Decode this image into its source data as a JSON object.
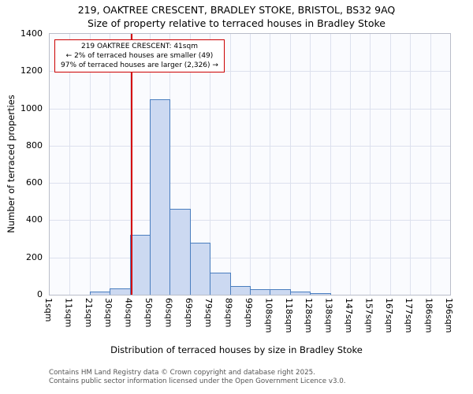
{
  "chart_data": {
    "type": "bar",
    "title": "219, OAKTREE CRESCENT, BRADLEY STOKE, BRISTOL, BS32 9AQ",
    "subtitle": "Size of property relative to terraced houses in Bradley Stoke",
    "xlabel": "Distribution of terraced houses by size in Bradley Stoke",
    "ylabel": "Number of terraced properties",
    "bin_edges_sqm": [
      1,
      11,
      21,
      30,
      40,
      50,
      60,
      69,
      79,
      89,
      99,
      108,
      118,
      128,
      138,
      147,
      157,
      167,
      177,
      186,
      196
    ],
    "tick_labels": [
      "1sqm",
      "11sqm",
      "21sqm",
      "30sqm",
      "40sqm",
      "50sqm",
      "60sqm",
      "69sqm",
      "79sqm",
      "89sqm",
      "99sqm",
      "108sqm",
      "118sqm",
      "128sqm",
      "138sqm",
      "147sqm",
      "157sqm",
      "167sqm",
      "177sqm",
      "186sqm",
      "196sqm"
    ],
    "values": [
      0,
      0,
      15,
      35,
      320,
      1050,
      460,
      280,
      120,
      45,
      30,
      30,
      15,
      10,
      0,
      0,
      0,
      0,
      0,
      0
    ],
    "ylim": [
      0,
      1400
    ],
    "ytick_step": 200,
    "grid": true,
    "legend": "none",
    "marker_value_sqm": 41,
    "annotation": {
      "line1": "219 OAKTREE CRESCENT: 41sqm",
      "line2": "← 2% of terraced houses are smaller (49)",
      "line3": "97% of terraced houses are larger (2,326) →"
    },
    "colors": {
      "bar_fill": "#ccd9f1",
      "bar_edge": "#4a7ebf",
      "marker_line": "#d40000",
      "annotation_border": "#cc0000",
      "grid": "#dde1ee",
      "plot_bg": "#fafbfe"
    }
  },
  "footer": {
    "line1": "Contains HM Land Registry data © Crown copyright and database right 2025.",
    "line2": "Contains public sector information licensed under the Open Government Licence v3.0."
  }
}
